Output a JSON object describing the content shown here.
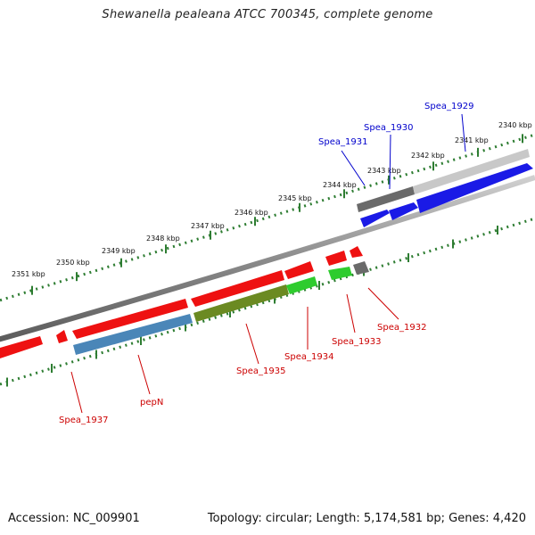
{
  "title": "Shewanella pealeana ATCC 700345, complete genome",
  "footer": {
    "accession": "Accession: NC_009901",
    "topology": "Topology: circular; Length: 5,174,581 bp; Genes: 4,420"
  },
  "colors": {
    "forward_label": "#0000cc",
    "reverse_label": "#cc0000",
    "backbone": "#8a8a8a",
    "ruler": "#2e7d32",
    "cds_red": "#ee1111",
    "cds_blue": "#1a1ae6",
    "cds_grey": "#6a6a6a",
    "cds_steel": "#4a86b8",
    "cds_olive": "#6b8a22",
    "cds_green": "#2ecc2e"
  },
  "ruler_labels": [
    "2340 kbp",
    "2341 kbp",
    "2342 kbp",
    "2343 kbp",
    "2344 kbp",
    "2345 kbp",
    "2346 kbp",
    "2347 kbp",
    "2348 kbp",
    "2349 kbp",
    "2350 kbp",
    "2351 kbp"
  ],
  "genes_forward": [
    {
      "label": "Spea_1929"
    },
    {
      "label": "Spea_1930"
    },
    {
      "label": "Spea_1931"
    }
  ],
  "genes_reverse": [
    {
      "label": "Spea_1932"
    },
    {
      "label": "Spea_1933"
    },
    {
      "label": "Spea_1934"
    },
    {
      "label": "Spea_1935"
    },
    {
      "label": "pepN"
    },
    {
      "label": "Spea_1937"
    }
  ]
}
